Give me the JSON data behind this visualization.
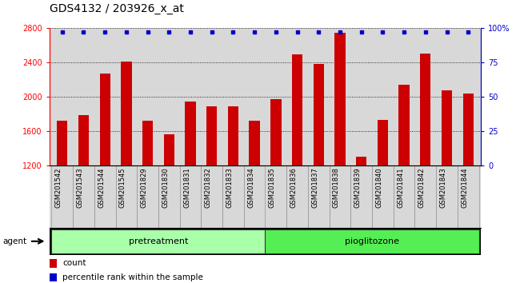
{
  "title": "GDS4132 / 203926_x_at",
  "samples": [
    "GSM201542",
    "GSM201543",
    "GSM201544",
    "GSM201545",
    "GSM201829",
    "GSM201830",
    "GSM201831",
    "GSM201832",
    "GSM201833",
    "GSM201834",
    "GSM201835",
    "GSM201836",
    "GSM201837",
    "GSM201838",
    "GSM201839",
    "GSM201840",
    "GSM201841",
    "GSM201842",
    "GSM201843",
    "GSM201844"
  ],
  "counts": [
    1720,
    1790,
    2270,
    2410,
    1720,
    1560,
    1950,
    1890,
    1890,
    1720,
    1970,
    2500,
    2380,
    2750,
    1300,
    1730,
    2140,
    2510,
    2080,
    2040
  ],
  "percentile_ranks": [
    100,
    100,
    100,
    100,
    100,
    100,
    100,
    100,
    100,
    100,
    100,
    100,
    100,
    100,
    100,
    100,
    100,
    100,
    100,
    100
  ],
  "bar_color": "#cc0000",
  "dot_color": "#0000cc",
  "ylim_left": [
    1200,
    2800
  ],
  "ylim_right": [
    0,
    100
  ],
  "yticks_left": [
    1200,
    1600,
    2000,
    2400,
    2800
  ],
  "yticks_right": [
    0,
    25,
    50,
    75,
    100
  ],
  "group_labels": [
    "pretreatment",
    "pioglitozone"
  ],
  "group_colors": [
    "#aaffaa",
    "#55ee55"
  ],
  "group_ranges": [
    [
      0,
      10
    ],
    [
      10,
      20
    ]
  ],
  "agent_label": "agent",
  "legend_count_label": "count",
  "legend_percentile_label": "percentile rank within the sample",
  "plot_bg_color": "#d8d8d8",
  "title_fontsize": 10,
  "bar_width": 0.5
}
